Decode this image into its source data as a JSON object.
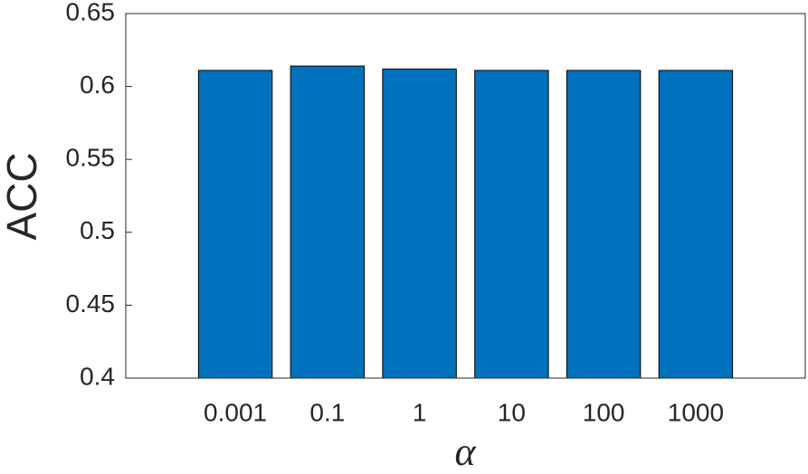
{
  "chart_data": {
    "type": "bar",
    "x_label": "α",
    "y_label": "ACC",
    "categories": [
      "0.001",
      "0.1",
      "1",
      "10",
      "100",
      "1000"
    ],
    "values": [
      0.611,
      0.614,
      0.612,
      0.611,
      0.611,
      0.611
    ],
    "color": "#0072bd",
    "ylim": [
      0.4,
      0.65
    ],
    "yticks": [
      0.4,
      0.45,
      0.5,
      0.55,
      0.6,
      0.65
    ],
    "grid": false
  }
}
